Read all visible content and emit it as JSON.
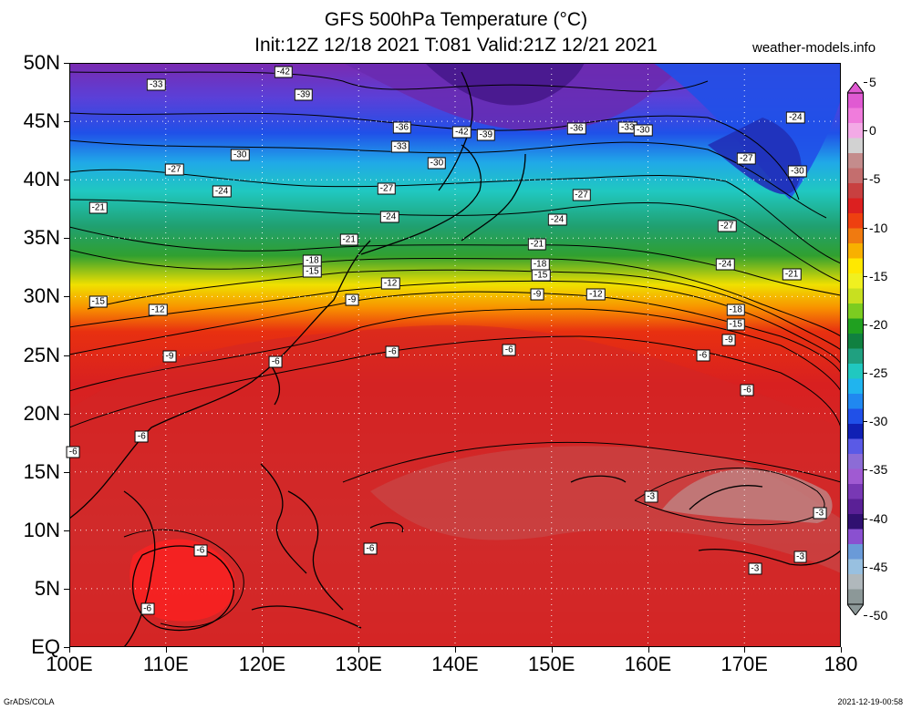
{
  "title": {
    "line1": "GFS 500hPa Temperature (°C)",
    "line2": "Init:12Z 12/18 2021 T:081 Valid:21Z 12/21 2021"
  },
  "site": "weather-models.info",
  "footer": {
    "left": "GrADS/COLA",
    "right": "2021-12-19-00:58"
  },
  "map": {
    "extent": {
      "lon_min": 100,
      "lon_max": 180,
      "lat_min": 0,
      "lat_max": 50
    },
    "lat_labels": [
      {
        "lat": 50,
        "label": "50N"
      },
      {
        "lat": 45,
        "label": "45N"
      },
      {
        "lat": 40,
        "label": "40N"
      },
      {
        "lat": 35,
        "label": "35N"
      },
      {
        "lat": 30,
        "label": "30N"
      },
      {
        "lat": 25,
        "label": "25N"
      },
      {
        "lat": 20,
        "label": "20N"
      },
      {
        "lat": 15,
        "label": "15N"
      },
      {
        "lat": 10,
        "label": "10N"
      },
      {
        "lat": 5,
        "label": "5N"
      },
      {
        "lat": 0,
        "label": "EQ"
      }
    ],
    "lon_labels": [
      {
        "lon": 100,
        "label": "100E"
      },
      {
        "lon": 110,
        "label": "110E"
      },
      {
        "lon": 120,
        "label": "120E"
      },
      {
        "lon": 130,
        "label": "130E"
      },
      {
        "lon": 140,
        "label": "140E"
      },
      {
        "lon": 150,
        "label": "150E"
      },
      {
        "lon": 160,
        "label": "160E"
      },
      {
        "lon": 170,
        "label": "170E"
      },
      {
        "lon": 180,
        "label": "180"
      }
    ],
    "contour_labels": [
      {
        "lon": 109,
        "lat": 48.1,
        "label": "-33"
      },
      {
        "lon": 122.2,
        "lat": 49.2,
        "label": "-42"
      },
      {
        "lon": 124.3,
        "lat": 47.3,
        "label": "-39"
      },
      {
        "lon": 134.5,
        "lat": 44.5,
        "label": "-36"
      },
      {
        "lon": 134.3,
        "lat": 42.8,
        "label": "-33"
      },
      {
        "lon": 140.7,
        "lat": 44.1,
        "label": "-42"
      },
      {
        "lon": 143.2,
        "lat": 43.8,
        "label": "-39"
      },
      {
        "lon": 152.6,
        "lat": 44.4,
        "label": "-36"
      },
      {
        "lon": 157.9,
        "lat": 44.5,
        "label": "-33"
      },
      {
        "lon": 159.5,
        "lat": 44.2,
        "label": "-30"
      },
      {
        "lon": 117.7,
        "lat": 42.1,
        "label": "-30"
      },
      {
        "lon": 138.1,
        "lat": 41.4,
        "label": "-30"
      },
      {
        "lon": 110.9,
        "lat": 40.9,
        "label": "-27"
      },
      {
        "lon": 115.8,
        "lat": 39.0,
        "label": "-24"
      },
      {
        "lon": 132.9,
        "lat": 39.2,
        "label": "-27"
      },
      {
        "lon": 153.1,
        "lat": 38.7,
        "label": "-27"
      },
      {
        "lon": 103.0,
        "lat": 37.6,
        "label": "-21"
      },
      {
        "lon": 133.2,
        "lat": 36.8,
        "label": "-24"
      },
      {
        "lon": 150.6,
        "lat": 36.6,
        "label": "-24"
      },
      {
        "lon": 129.0,
        "lat": 34.9,
        "label": "-21"
      },
      {
        "lon": 148.5,
        "lat": 34.5,
        "label": "-21"
      },
      {
        "lon": 170.2,
        "lat": 41.8,
        "label": "-27"
      },
      {
        "lon": 175.5,
        "lat": 40.7,
        "label": "-30"
      },
      {
        "lon": 168.2,
        "lat": 36.0,
        "label": "-27"
      },
      {
        "lon": 168.0,
        "lat": 32.8,
        "label": "-24"
      },
      {
        "lon": 174.9,
        "lat": 31.9,
        "label": "-21"
      },
      {
        "lon": 175.3,
        "lat": 45.3,
        "label": "-24"
      },
      {
        "lon": 125.2,
        "lat": 33.1,
        "label": "-18"
      },
      {
        "lon": 125.2,
        "lat": 32.1,
        "label": "-15"
      },
      {
        "lon": 133.3,
        "lat": 31.1,
        "label": "-12"
      },
      {
        "lon": 148.8,
        "lat": 32.8,
        "label": "-18"
      },
      {
        "lon": 148.9,
        "lat": 31.8,
        "label": "-15"
      },
      {
        "lon": 148.5,
        "lat": 30.2,
        "label": "-9"
      },
      {
        "lon": 154.6,
        "lat": 30.2,
        "label": "-12"
      },
      {
        "lon": 103.0,
        "lat": 29.6,
        "label": "-15"
      },
      {
        "lon": 109.2,
        "lat": 28.9,
        "label": "-12"
      },
      {
        "lon": 129.3,
        "lat": 29.7,
        "label": "-9"
      },
      {
        "lon": 169.1,
        "lat": 28.9,
        "label": "-18"
      },
      {
        "lon": 169.1,
        "lat": 27.6,
        "label": "-15"
      },
      {
        "lon": 168.4,
        "lat": 26.3,
        "label": "-9"
      },
      {
        "lon": 110.4,
        "lat": 24.9,
        "label": "-9"
      },
      {
        "lon": 121.4,
        "lat": 24.4,
        "label": "-6"
      },
      {
        "lon": 133.5,
        "lat": 25.3,
        "label": "-6"
      },
      {
        "lon": 145.6,
        "lat": 25.4,
        "label": "-6"
      },
      {
        "lon": 165.7,
        "lat": 25.0,
        "label": "-6"
      },
      {
        "lon": 170.3,
        "lat": 22.0,
        "label": "-6"
      },
      {
        "lon": 107.5,
        "lat": 18.0,
        "label": "-6"
      },
      {
        "lon": 100.4,
        "lat": 16.7,
        "label": "-6"
      },
      {
        "lon": 160.3,
        "lat": 12.9,
        "label": "-3"
      },
      {
        "lon": 177.8,
        "lat": 11.5,
        "label": "-3"
      },
      {
        "lon": 175.8,
        "lat": 7.7,
        "label": "-3"
      },
      {
        "lon": 171.1,
        "lat": 6.7,
        "label": "-3"
      },
      {
        "lon": 113.6,
        "lat": 8.3,
        "label": "-6"
      },
      {
        "lon": 131.2,
        "lat": 8.4,
        "label": "-6"
      },
      {
        "lon": 108.1,
        "lat": 3.3,
        "label": "-6"
      }
    ]
  },
  "colorbar": {
    "labels": [
      "5",
      "0",
      "-5",
      "-10",
      "-15",
      "-20",
      "-25",
      "-30",
      "-35",
      "-40",
      "-45",
      "-50"
    ],
    "max": 5,
    "min": -50,
    "colors": [
      "#e05ad2",
      "#f07cdc",
      "#f3aae6",
      "#d2d2d2",
      "#c48c8c",
      "#c46e6e",
      "#c84040",
      "#dc2020",
      "#ee4010",
      "#f07a10",
      "#f8b000",
      "#ffe800",
      "#f0f020",
      "#c8e020",
      "#7ccc20",
      "#20a020",
      "#108040",
      "#20a080",
      "#20c8c0",
      "#20b4ee",
      "#2088f0",
      "#2050e8",
      "#1020b4",
      "#5a5ae6",
      "#8c6cd6",
      "#a05ad2",
      "#7838b4",
      "#5a2096",
      "#301070",
      "#8a50d0",
      "#6a9ad8",
      "#98c0e0",
      "#b0b8bc",
      "#8c9898"
    ]
  }
}
